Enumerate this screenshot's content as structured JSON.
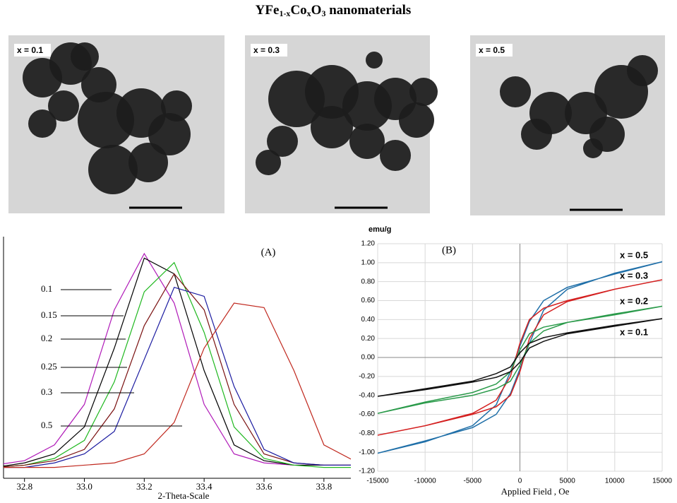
{
  "title": [
    "YFe",
    "1-x",
    "Co",
    "x",
    "O",
    "3",
    " nanomaterials"
  ],
  "images": [
    {
      "label": "x = 0.1"
    },
    {
      "label": "x = 0.3"
    },
    {
      "label": "x = 0.5"
    }
  ],
  "chart_data": [
    {
      "type": "line",
      "annotation": "(A)",
      "xlabel": "2-Theta-Scale",
      "x": [
        32.7,
        32.8,
        32.9,
        33.0,
        33.1,
        33.2,
        33.3,
        33.4,
        33.5,
        33.6,
        33.7,
        33.8,
        33.9
      ],
      "xlim": [
        32.73,
        33.89
      ],
      "ylim": [
        0,
        1.02
      ],
      "xticks": [
        {
          "value": 32.8,
          "label": "32.8"
        },
        {
          "value": 33.0,
          "label": "33.0"
        },
        {
          "value": 33.2,
          "label": "33.2"
        },
        {
          "value": 33.4,
          "label": "33.4"
        },
        {
          "value": 33.6,
          "label": "33.6"
        },
        {
          "value": 33.8,
          "label": "33.8"
        }
      ],
      "series": [
        {
          "name": "0.1",
          "color": "#b01ab8",
          "values": [
            0.03,
            0.05,
            0.12,
            0.3,
            0.72,
            0.97,
            0.75,
            0.3,
            0.08,
            0.04,
            0.03,
            0.03,
            0.03
          ]
        },
        {
          "name": "0.15",
          "color": "#000000",
          "values": [
            0.02,
            0.04,
            0.08,
            0.2,
            0.55,
            0.95,
            0.88,
            0.45,
            0.12,
            0.05,
            0.03,
            0.03,
            0.03
          ]
        },
        {
          "name": "0.2",
          "color": "#1fb81f",
          "values": [
            0.02,
            0.03,
            0.06,
            0.14,
            0.4,
            0.8,
            0.93,
            0.62,
            0.2,
            0.06,
            0.03,
            0.02,
            0.02
          ]
        },
        {
          "name": "0.25",
          "color": "#7a1010",
          "values": [
            0.02,
            0.03,
            0.05,
            0.1,
            0.28,
            0.65,
            0.88,
            0.72,
            0.3,
            0.08,
            0.04,
            0.03,
            0.03
          ]
        },
        {
          "name": "0.3",
          "color": "#1a1aa0",
          "values": [
            0.02,
            0.02,
            0.04,
            0.08,
            0.18,
            0.5,
            0.82,
            0.78,
            0.38,
            0.1,
            0.04,
            0.03,
            0.03
          ]
        },
        {
          "name": "0.5",
          "color": "#c0281e",
          "values": [
            0.02,
            0.02,
            0.02,
            0.03,
            0.04,
            0.08,
            0.22,
            0.55,
            0.75,
            0.73,
            0.45,
            0.12,
            0.05
          ]
        }
      ]
    },
    {
      "type": "loop",
      "annotation": "(B)",
      "xlabel": "Applied Field , Oe",
      "ylabel": "emu/g",
      "grid": true,
      "x": [
        15000,
        10000,
        5000,
        2500,
        1000,
        0,
        -1000,
        -2500,
        -5000,
        -10000,
        -15000,
        -10000,
        -5000,
        -2500,
        -1000,
        0,
        1000,
        2500,
        5000,
        10000,
        15000
      ],
      "xlim": [
        -15000,
        15000
      ],
      "ylim": [
        -1.2,
        1.2
      ],
      "xticks": [
        -15000,
        -10000,
        -5000,
        0,
        5000,
        10000,
        15000
      ],
      "yticks": [
        {
          "value": 1.2,
          "label": "1.20"
        },
        {
          "value": 1.0,
          "label": "1.00"
        },
        {
          "value": 0.8,
          "label": "0.80"
        },
        {
          "value": 0.6,
          "label": "0.60"
        },
        {
          "value": 0.4,
          "label": "0.40"
        },
        {
          "value": 0.2,
          "label": "0.20"
        },
        {
          "value": 0,
          "label": "0.00"
        },
        {
          "value": -0.2,
          "label": "-0.20"
        },
        {
          "value": -0.4,
          "label": "-0.40"
        },
        {
          "value": -0.6,
          "label": "-0.60"
        },
        {
          "value": -0.8,
          "label": "-0.80"
        },
        {
          "value": -1.0,
          "label": "-1.00"
        },
        {
          "value": -1.2,
          "label": "-1.20"
        }
      ],
      "series": [
        {
          "name": "x = 0.5",
          "color": "#1f6fa8",
          "values": [
            1.01,
            0.88,
            0.74,
            0.6,
            0.38,
            0.12,
            -0.15,
            -0.5,
            -0.72,
            -0.89,
            -1.01,
            -0.88,
            -0.74,
            -0.6,
            -0.38,
            -0.12,
            0.15,
            0.5,
            0.72,
            0.89,
            1.01
          ]
        },
        {
          "name": "x = 0.3",
          "color": "#d42020",
          "values": [
            0.82,
            0.72,
            0.6,
            0.52,
            0.4,
            0.15,
            -0.2,
            -0.45,
            -0.59,
            -0.72,
            -0.82,
            -0.72,
            -0.6,
            -0.52,
            -0.4,
            -0.15,
            0.2,
            0.45,
            0.59,
            0.72,
            0.82
          ]
        },
        {
          "name": "x = 0.2",
          "color": "#2a9a4a",
          "values": [
            0.54,
            0.46,
            0.37,
            0.32,
            0.25,
            0.08,
            -0.15,
            -0.28,
            -0.37,
            -0.47,
            -0.59,
            -0.48,
            -0.4,
            -0.33,
            -0.25,
            -0.08,
            0.15,
            0.28,
            0.37,
            0.45,
            0.54
          ]
        },
        {
          "name": "x = 0.1",
          "color": "#111111",
          "values": [
            0.41,
            0.34,
            0.26,
            0.21,
            0.15,
            0.05,
            -0.1,
            -0.17,
            -0.25,
            -0.33,
            -0.41,
            -0.34,
            -0.26,
            -0.21,
            -0.15,
            -0.05,
            0.1,
            0.17,
            0.25,
            0.33,
            0.41
          ]
        }
      ]
    }
  ]
}
